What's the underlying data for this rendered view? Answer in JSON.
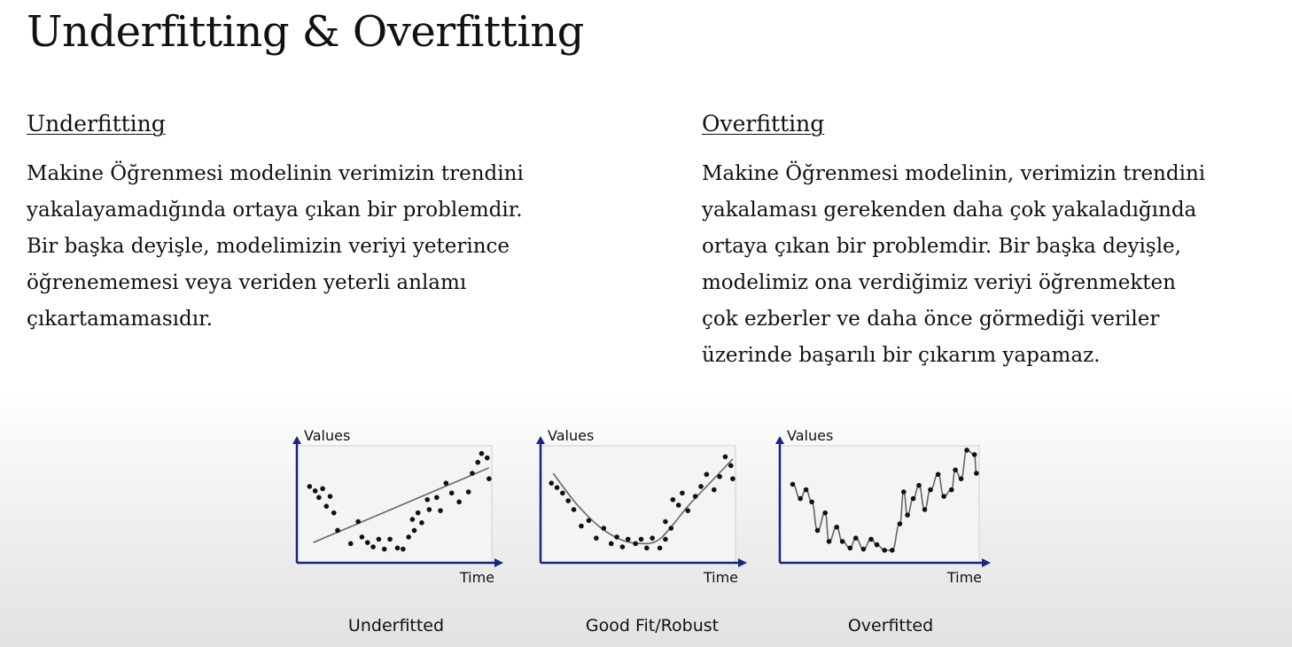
{
  "slide": {
    "title": "Underfitting & Overfitting",
    "underfitting": {
      "heading": "Underfitting",
      "lines": [
        "Makine Öğrenmesi modelinin verimizin trendini",
        "yakalayamadığında ortaya çıkan bir problemdir.",
        "Bir başka deyişle, modelimizin veriyi yeterince",
        "öğrenememesi veya veriden yeterli anlamı",
        "çıkartamamasıdır."
      ]
    },
    "overfitting": {
      "heading": "Overfitting",
      "lines": [
        "Makine Öğrenmesi modelinin, verimizin trendini",
        "yakalaması gerekenden daha çok yakaladığında",
        "ortaya çıkan bir problemdir. Bir başka deyişle,",
        "modelimiz ona verdiğimiz veriyi öğrenmekten",
        "çok ezberler ve daha önce görmediği veriler",
        "üzerinde başarılı bir çıkarım yapamaz."
      ]
    }
  },
  "chart_data": [
    {
      "type": "scatter",
      "caption": "Underfitted",
      "xlabel": "Time",
      "ylabel": "Values",
      "xlim": [
        0,
        10
      ],
      "ylim": [
        0,
        10
      ],
      "points": [
        [
          0.3,
          6.3
        ],
        [
          0.6,
          5.9
        ],
        [
          1.0,
          6.1
        ],
        [
          0.8,
          5.3
        ],
        [
          1.4,
          5.4
        ],
        [
          1.2,
          4.5
        ],
        [
          1.6,
          3.9
        ],
        [
          1.8,
          2.3
        ],
        [
          2.5,
          1.1
        ],
        [
          2.9,
          3.1
        ],
        [
          3.1,
          1.7
        ],
        [
          3.4,
          1.2
        ],
        [
          3.7,
          0.8
        ],
        [
          4.0,
          1.5
        ],
        [
          4.3,
          0.6
        ],
        [
          4.6,
          1.5
        ],
        [
          5.0,
          0.7
        ],
        [
          5.3,
          0.6
        ],
        [
          5.6,
          1.7
        ],
        [
          5.9,
          2.3
        ],
        [
          5.8,
          3.3
        ],
        [
          6.1,
          3.9
        ],
        [
          6.3,
          3.0
        ],
        [
          6.6,
          5.1
        ],
        [
          6.7,
          4.2
        ],
        [
          7.1,
          5.3
        ],
        [
          7.3,
          4.1
        ],
        [
          7.6,
          6.6
        ],
        [
          7.9,
          5.7
        ],
        [
          8.3,
          4.9
        ],
        [
          8.8,
          5.8
        ],
        [
          9.0,
          7.5
        ],
        [
          9.3,
          8.5
        ],
        [
          9.5,
          9.3
        ],
        [
          9.8,
          8.9
        ],
        [
          9.9,
          7.0
        ]
      ],
      "fit": [
        [
          0.5,
          1.2
        ],
        [
          9.9,
          8.0
        ]
      ]
    },
    {
      "type": "scatter",
      "caption": "Good Fit/Robust",
      "xlabel": "Time",
      "ylabel": "Values",
      "xlim": [
        0,
        10
      ],
      "ylim": [
        0,
        10
      ],
      "points": [
        [
          0.2,
          6.6
        ],
        [
          0.5,
          6.2
        ],
        [
          0.8,
          5.7
        ],
        [
          1.1,
          5.0
        ],
        [
          1.4,
          4.2
        ],
        [
          1.8,
          2.7
        ],
        [
          2.2,
          3.2
        ],
        [
          2.6,
          1.6
        ],
        [
          3.0,
          2.5
        ],
        [
          3.4,
          1.1
        ],
        [
          3.7,
          1.7
        ],
        [
          4.0,
          0.8
        ],
        [
          4.3,
          1.5
        ],
        [
          4.7,
          1.1
        ],
        [
          5.0,
          1.5
        ],
        [
          5.3,
          0.7
        ],
        [
          5.6,
          1.6
        ],
        [
          6.0,
          0.7
        ],
        [
          6.3,
          1.5
        ],
        [
          6.6,
          2.5
        ],
        [
          6.3,
          3.1
        ],
        [
          6.7,
          5.1
        ],
        [
          7.0,
          4.6
        ],
        [
          7.2,
          5.7
        ],
        [
          7.5,
          4.1
        ],
        [
          7.9,
          5.4
        ],
        [
          8.2,
          6.3
        ],
        [
          8.5,
          7.4
        ],
        [
          8.9,
          6.0
        ],
        [
          9.2,
          7.2
        ],
        [
          9.5,
          9.0
        ],
        [
          9.8,
          8.2
        ],
        [
          9.9,
          7.0
        ]
      ],
      "fit": [
        [
          0.3,
          7.5
        ],
        [
          1.5,
          4.8
        ],
        [
          2.8,
          2.6
        ],
        [
          4.0,
          1.4
        ],
        [
          5.0,
          1.1
        ],
        [
          5.8,
          1.3
        ],
        [
          6.5,
          2.4
        ],
        [
          7.5,
          4.5
        ],
        [
          8.5,
          6.3
        ],
        [
          9.9,
          8.8
        ]
      ]
    },
    {
      "type": "scatter",
      "caption": "Overfitted",
      "xlabel": "Time",
      "ylabel": "Values",
      "xlim": [
        0,
        10
      ],
      "ylim": [
        0,
        10
      ],
      "points": [
        [
          0.3,
          6.5
        ],
        [
          0.7,
          5.2
        ],
        [
          1.0,
          6.0
        ],
        [
          1.3,
          4.9
        ],
        [
          1.6,
          2.3
        ],
        [
          2.0,
          3.9
        ],
        [
          2.2,
          1.3
        ],
        [
          2.6,
          2.6
        ],
        [
          2.9,
          1.3
        ],
        [
          3.3,
          0.7
        ],
        [
          3.6,
          1.6
        ],
        [
          4.0,
          0.6
        ],
        [
          4.4,
          1.5
        ],
        [
          4.7,
          1.0
        ],
        [
          5.1,
          0.5
        ],
        [
          5.5,
          0.5
        ],
        [
          5.9,
          2.9
        ],
        [
          6.1,
          5.8
        ],
        [
          6.3,
          3.7
        ],
        [
          6.6,
          5.2
        ],
        [
          6.9,
          6.4
        ],
        [
          7.2,
          4.2
        ],
        [
          7.5,
          6.0
        ],
        [
          7.9,
          7.4
        ],
        [
          8.2,
          5.4
        ],
        [
          8.6,
          6.0
        ],
        [
          8.8,
          7.8
        ],
        [
          9.1,
          7.0
        ],
        [
          9.4,
          9.6
        ],
        [
          9.8,
          9.2
        ],
        [
          9.9,
          7.5
        ]
      ],
      "fit": "interpolating"
    }
  ]
}
